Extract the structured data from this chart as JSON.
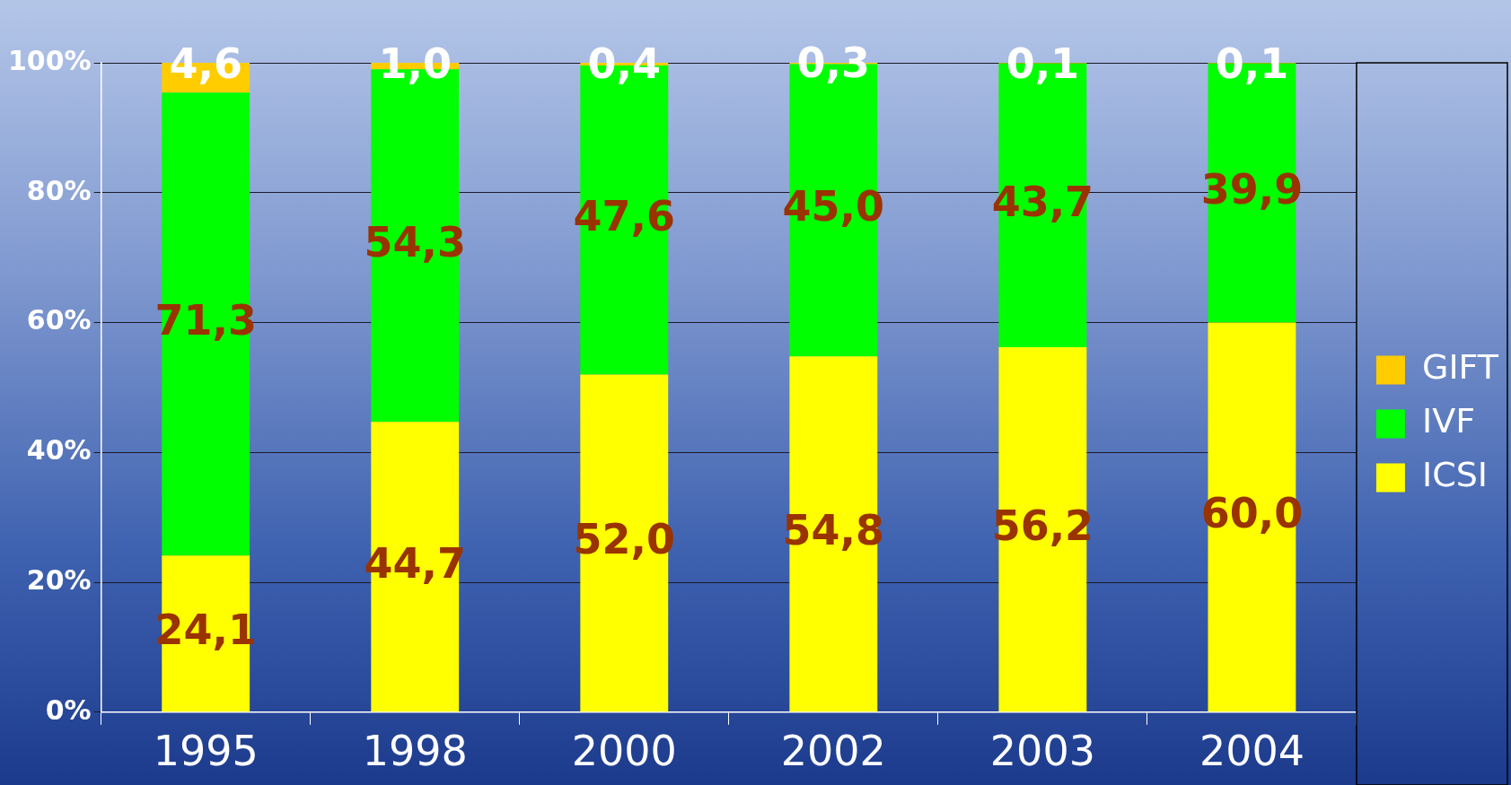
{
  "chart_data": {
    "type": "bar",
    "categories": [
      "1995",
      "1998",
      "2000",
      "2002",
      "2003",
      "2004"
    ],
    "stacked": true,
    "ylim": [
      0,
      100
    ],
    "yticks": [
      {
        "value": 0,
        "label": "0%"
      },
      {
        "value": 20,
        "label": "20%"
      },
      {
        "value": 40,
        "label": "40%"
      },
      {
        "value": 60,
        "label": "60%"
      },
      {
        "value": 80,
        "label": "80%"
      },
      {
        "value": 100,
        "label": "100%"
      }
    ],
    "grid": "y",
    "legend": "right",
    "series": [
      {
        "name": "ICSI",
        "color": "#ffff00",
        "values": [
          24.1,
          44.7,
          52.0,
          54.8,
          56.2,
          60.0
        ],
        "value_labels": [
          "24,1",
          "44,7",
          "52,0",
          "54,8",
          "56,2",
          "60,0"
        ]
      },
      {
        "name": "IVF",
        "color": "#00ff00",
        "values": [
          71.3,
          54.3,
          47.6,
          45.0,
          43.7,
          39.9
        ],
        "value_labels": [
          "71,3",
          "54,3",
          "47,6",
          "45,0",
          "43,7",
          "39,9"
        ]
      },
      {
        "name": "GIFT",
        "color": "#ffcc00",
        "values": [
          4.6,
          1.0,
          0.4,
          0.3,
          0.1,
          0.1
        ],
        "value_labels": [
          "4,6",
          "1,0",
          "0,4",
          "0,3",
          "0,1",
          "0,1"
        ]
      }
    ]
  }
}
